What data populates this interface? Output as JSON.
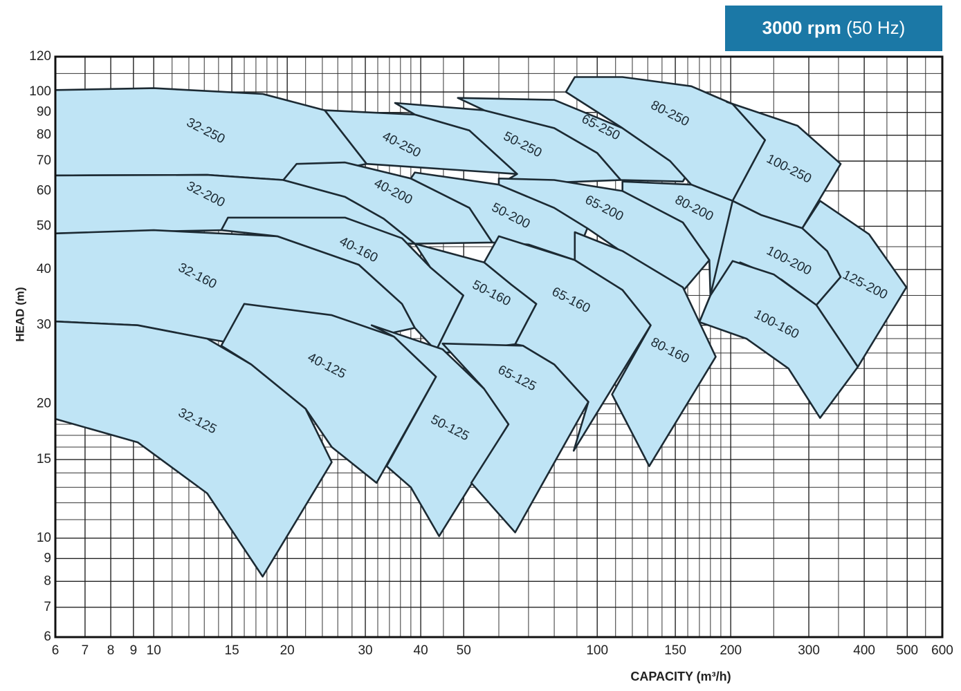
{
  "chart_data": {
    "type": "region",
    "title": "3000 rpm",
    "subtitle": "(50 Hz)",
    "x_label": "CAPACITY (m³/h)",
    "y_label": "HEAD (m)",
    "xscale": "log",
    "yscale": "log",
    "grid": true,
    "color": "#bfe4f5",
    "edge_color": "#1c2a33",
    "xlim": [
      6,
      600
    ],
    "ylim": [
      6,
      120
    ],
    "xticks": [
      6,
      7,
      8,
      9,
      10,
      15,
      20,
      30,
      40,
      50,
      100,
      150,
      200,
      300,
      400,
      500,
      600
    ],
    "yticks": [
      6,
      7,
      8,
      9,
      10,
      15,
      20,
      30,
      40,
      50,
      60,
      70,
      80,
      90,
      100,
      120
    ],
    "xminor": [
      11,
      12,
      13,
      14,
      16,
      17,
      18,
      19,
      22,
      24,
      26,
      28,
      32,
      34,
      36,
      38,
      45,
      60,
      70,
      80,
      90,
      110,
      120,
      130,
      140,
      160,
      170,
      180,
      190,
      250,
      350,
      450,
      550
    ],
    "yminor": [
      11,
      12,
      13,
      14,
      16,
      17,
      18,
      19,
      22,
      24,
      26,
      28,
      35,
      45,
      110
    ],
    "series": [
      {
        "name": "32-250",
        "x": [
          6,
          10,
          17.6,
          24.3,
          30.2,
          19.6,
          13.2,
          6
        ],
        "values": [
          101,
          102,
          99,
          91,
          69,
          63.5,
          65.2,
          65
        ]
      },
      {
        "name": "32-200",
        "x": [
          6,
          13.2,
          19.6,
          27,
          33,
          38.8,
          25,
          14.5,
          6
        ],
        "values": [
          65,
          65.2,
          63.5,
          58.2,
          52,
          45.7,
          46,
          49,
          48.2
        ]
      },
      {
        "name": "32-160",
        "x": [
          6,
          10,
          19,
          29,
          36.3,
          38.8,
          30,
          20,
          13.2,
          9.2,
          6
        ],
        "values": [
          48.2,
          49,
          47.5,
          41,
          33.5,
          29.6,
          28,
          26,
          28,
          30,
          30.6
        ]
      },
      {
        "name": "32-125",
        "x": [
          6,
          9.2,
          13.2,
          16.6,
          22,
          25.2,
          17.6,
          13.2,
          9.2,
          6
        ],
        "values": [
          30.6,
          30,
          28,
          24.5,
          19.5,
          14.8,
          8.2,
          12.6,
          16.4,
          18.5
        ]
      },
      {
        "name": "40-250",
        "x": [
          24.3,
          38.8,
          51.5,
          66,
          30.2
        ],
        "values": [
          91,
          89,
          82,
          65.5,
          69
        ]
      },
      {
        "name": "40-200",
        "x": [
          19.6,
          21,
          27,
          38,
          51.5,
          58,
          38.8,
          33,
          27
        ],
        "values": [
          63.5,
          69,
          69.5,
          64,
          55,
          46,
          45.7,
          52,
          58.2
        ]
      },
      {
        "name": "40-160",
        "x": [
          14.7,
          27,
          36.3,
          42,
          49.9,
          43.3,
          38.8,
          36.3,
          29,
          19,
          14.2
        ],
        "values": [
          52.3,
          52.3,
          47,
          40.5,
          35,
          26.3,
          29.6,
          33.5,
          41,
          47.5,
          49
        ]
      },
      {
        "name": "40-125",
        "x": [
          16,
          25.2,
          34.8,
          43.3,
          31.8,
          25.2,
          22,
          16.6,
          14.2
        ],
        "values": [
          33.5,
          31.6,
          28.3,
          23,
          13.3,
          16,
          19.5,
          24.5,
          27
        ]
      },
      {
        "name": "50-250",
        "x": [
          35,
          55.6,
          80,
          100,
          113,
          60,
          66,
          51.5,
          38.8
        ],
        "values": [
          94.5,
          91,
          83,
          73,
          63.5,
          62,
          65.5,
          82,
          89
        ]
      },
      {
        "name": "50-200",
        "x": [
          38.8,
          60,
          80,
          95,
          89,
          70,
          58,
          51.5,
          38
        ],
        "values": [
          66,
          62,
          55,
          49.5,
          42,
          45.5,
          46,
          55,
          64
        ]
      },
      {
        "name": "50-160",
        "x": [
          38.8,
          55.6,
          64,
          72.9,
          65.3,
          45,
          43.3,
          49.9,
          42
        ],
        "values": [
          45.7,
          41.5,
          37,
          33.5,
          27.2,
          26,
          26.3,
          35,
          40.5
        ]
      },
      {
        "name": "50-125",
        "x": [
          31,
          44.8,
          55.6,
          63.1,
          44,
          38,
          33.5,
          43.3,
          34.8
        ],
        "values": [
          30,
          26.5,
          21.6,
          18,
          10.1,
          13,
          14.5,
          23,
          28.3
        ]
      },
      {
        "name": "65-250",
        "x": [
          48.5,
          80,
          114,
          146,
          163,
          156,
          113,
          100,
          80,
          55.6
        ],
        "values": [
          97,
          96,
          83,
          70,
          68,
          63,
          63.5,
          73,
          83,
          91
        ]
      },
      {
        "name": "65-200",
        "x": [
          60,
          80,
          114,
          156,
          179,
          155,
          130,
          95,
          80,
          60
        ],
        "values": [
          64,
          63.5,
          60,
          51,
          42,
          35.5,
          40,
          49.5,
          55,
          62
        ]
      },
      {
        "name": "65-160",
        "x": [
          60,
          89,
          114,
          132,
          88.5,
          95.5,
          80,
          68,
          65.3,
          72.9,
          64,
          55.6
        ],
        "values": [
          47.5,
          42,
          36,
          30,
          15.7,
          20.2,
          24.5,
          27,
          27.2,
          33.5,
          37,
          41.5
        ]
      },
      {
        "name": "65-125",
        "x": [
          44.8,
          68,
          80,
          95.5,
          65.3,
          52,
          63.1,
          55.6
        ],
        "values": [
          27.3,
          27,
          24.5,
          20.2,
          10.3,
          13.3,
          18,
          21.6
        ]
      },
      {
        "name": "80-250",
        "x": [
          89,
          114,
          163,
          202,
          239,
          202,
          163,
          146,
          114,
          85
        ],
        "values": [
          108,
          108,
          103,
          94,
          78,
          57,
          62,
          70,
          83,
          100
        ]
      },
      {
        "name": "80-200",
        "x": [
          114,
          163,
          202,
          234,
          170,
          180,
          179,
          156,
          114
        ],
        "values": [
          63,
          62,
          57,
          53,
          30.5,
          35,
          42,
          51,
          60
        ]
      },
      {
        "name": "80-160",
        "x": [
          89,
          114,
          156,
          185,
          131,
          108,
          132,
          114,
          89
        ],
        "values": [
          48.5,
          44,
          36.5,
          25.5,
          14.5,
          21,
          30,
          36,
          42
        ]
      },
      {
        "name": "100-250",
        "x": [
          196,
          283,
          354,
          290,
          234,
          202,
          239,
          202
        ],
        "values": [
          95,
          84,
          69,
          49.5,
          53,
          57,
          78,
          94
        ]
      },
      {
        "name": "100-200",
        "x": [
          234,
          290,
          330,
          354,
          312,
          260,
          210,
          180,
          202
        ],
        "values": [
          53,
          49.5,
          44,
          38.5,
          33.3,
          38,
          41.5,
          35,
          57
        ]
      },
      {
        "name": "125-200",
        "x": [
          318,
          410,
          498,
          387,
          312,
          354,
          330,
          290
        ],
        "values": [
          57,
          48,
          36.5,
          24.2,
          33.3,
          38.5,
          44,
          49.5
        ]
      },
      {
        "name": "100-160",
        "x": [
          202,
          250,
          312,
          387,
          318,
          270,
          217,
          170,
          180
        ],
        "values": [
          41.8,
          39,
          33.3,
          24.2,
          18.6,
          24,
          28,
          30.5,
          35
        ]
      }
    ]
  }
}
